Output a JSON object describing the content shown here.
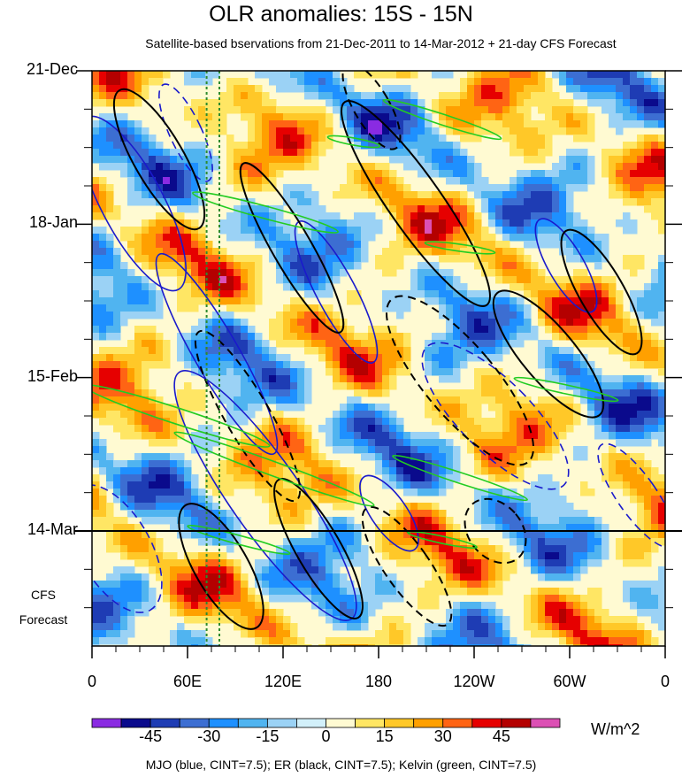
{
  "title": "OLR anomalies: 15S - 15N",
  "subtitle": "Satellite-based bservations from 21-Dec-2011 to 14-Mar-2012 + 21-day CFS Forecast",
  "forecast_label": [
    "CFS",
    "Forecast"
  ],
  "units": "W/m^2",
  "footer": "MJO (blue, CINT=7.5); ER (black, CINT=7.5); Kelvin (green, CINT=7.5)",
  "colors": {
    "mjo": "#1a1acc",
    "er": "#000000",
    "kelvin": "#22cc22",
    "marker": "#2e8b2e"
  },
  "chart_data": {
    "type": "heatmap",
    "title": "OLR anomalies: 15S - 15N",
    "x_ticks": [
      "0",
      "60E",
      "120E",
      "180",
      "120W",
      "60W",
      "0"
    ],
    "x_tick_lon": [
      0,
      60,
      120,
      180,
      240,
      300,
      360
    ],
    "y_ticks": [
      "21-Dec",
      "18-Jan",
      "15-Feb",
      "14-Mar"
    ],
    "y_tick_day": [
      0,
      28,
      56,
      84
    ],
    "day_range": [
      0,
      105
    ],
    "observation_end_day": 84,
    "colorbar": {
      "labels": [
        "-45",
        "-30",
        "-15",
        "0",
        "15",
        "30",
        "45"
      ],
      "label_values": [
        -45,
        -30,
        -15,
        0,
        15,
        30,
        45
      ],
      "levels": [
        -60,
        -52.5,
        -45,
        -37.5,
        -30,
        -22.5,
        -15,
        -7.5,
        0,
        7.5,
        15,
        22.5,
        30,
        37.5,
        45,
        52.5,
        60
      ],
      "colors": [
        "#8a2be2",
        "#0a0a8c",
        "#1e3cb4",
        "#3c6ed2",
        "#1e90ff",
        "#50b4f0",
        "#9bd2f5",
        "#d2f0fa",
        "#fffad2",
        "#ffe664",
        "#ffc828",
        "#ffa000",
        "#ff6414",
        "#e60000",
        "#b40000",
        "#dc50b4"
      ]
    },
    "reference_lines_lon": [
      72,
      80
    ]
  }
}
